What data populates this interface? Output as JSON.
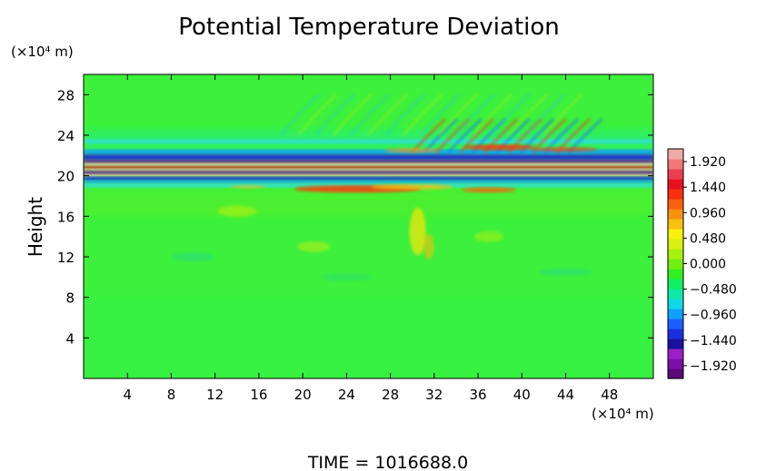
{
  "chart_data": {
    "type": "heatmap",
    "title": "Potential Temperature Deviation",
    "ylabel": "Height",
    "y_unit": "(×10⁴ m)",
    "x_unit": "(×10⁴ m)",
    "footer": "TIME  =  1016688.0",
    "xlim": [
      0,
      52
    ],
    "ylim": [
      0,
      30
    ],
    "x_ticks": [
      4,
      8,
      12,
      16,
      20,
      24,
      28,
      32,
      36,
      40,
      44,
      48
    ],
    "x_tick_labels": [
      "4",
      "8",
      "12",
      "16",
      "20",
      "24",
      "28",
      "32",
      "36",
      "40",
      "44",
      "48"
    ],
    "y_ticks": [
      4,
      8,
      12,
      16,
      20,
      24,
      28
    ],
    "y_tick_labels": [
      "4",
      "8",
      "12",
      "16",
      "20",
      "24",
      "28"
    ],
    "colorbar": {
      "min": -2.16,
      "max": 2.16,
      "tick_values": [
        1.92,
        1.44,
        0.96,
        0.48,
        0.0,
        -0.48,
        -0.96,
        -1.44,
        -1.92
      ],
      "tick_labels": [
        "1.920",
        "1.440",
        "0.960",
        "0.480",
        "0.000",
        "−0.480",
        "−0.960",
        "−1.440",
        "−1.920"
      ],
      "colors": [
        "#5a0a78",
        "#7a10a8",
        "#9a20c8",
        "#1a10a0",
        "#1a30e0",
        "#1a60ff",
        "#10a0ff",
        "#10d8e8",
        "#10e8a8",
        "#10f060",
        "#30f020",
        "#70f010",
        "#a8f010",
        "#d8f010",
        "#f8f010",
        "#f8c010",
        "#f89010",
        "#f86010",
        "#f83010",
        "#e81020",
        "#e84050",
        "#f07878",
        "#f0a8a8"
      ]
    },
    "field_description": "Green background (~0 deviation) with strong alternating warm/cold horizontal bands between heights ~19 and ~23, wave patterns above (heights 22-28) near x 28-44, weak yellow anomalies around x 30-31 heights 12-16"
  }
}
